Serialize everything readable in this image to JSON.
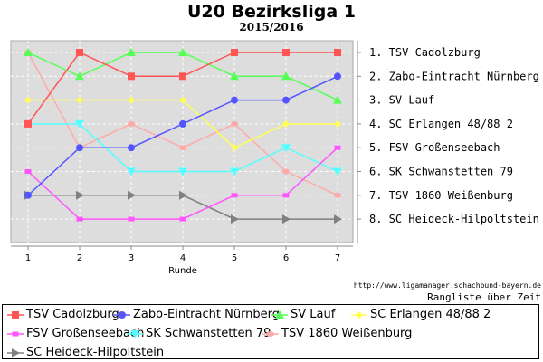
{
  "chart_data": {
    "type": "line",
    "title": "U20 Bezirksliga 1",
    "subtitle": "2015/2016",
    "xlabel": "Runde",
    "x": [
      1,
      2,
      3,
      4,
      5,
      6,
      7
    ],
    "ylim": [
      1,
      8
    ],
    "y_inverted": true,
    "grid": true,
    "legend": "bottom",
    "final_ranking": [
      "1. TSV Cadolzburg",
      "2. Zabo-Eintracht Nürnberg",
      "3. SV Lauf",
      "4. SC Erlangen 48/88 2",
      "5. FSV Großenseebach",
      "6. SK Schwanstetten 79",
      "7. TSV 1860 Weißenburg",
      "8. SC Heideck-Hilpoltstein"
    ],
    "series": [
      {
        "name": "TSV Cadolzburg",
        "color": "#ff5555",
        "marker": "square",
        "values": [
          4,
          1,
          2,
          2,
          1,
          1,
          1
        ]
      },
      {
        "name": "Zabo-Eintracht Nürnberg",
        "color": "#5555ff",
        "marker": "circle",
        "values": [
          7,
          5,
          5,
          4,
          3,
          3,
          2
        ]
      },
      {
        "name": "SV Lauf",
        "color": "#55ff55",
        "marker": "triangle-up",
        "values": [
          1,
          2,
          1,
          1,
          2,
          2,
          3
        ]
      },
      {
        "name": "SC Erlangen 48/88 2",
        "color": "#ffff55",
        "marker": "diamond",
        "values": [
          3,
          3,
          3,
          3,
          5,
          4,
          4
        ]
      },
      {
        "name": "FSV Großenseebach",
        "color": "#ff55ff",
        "marker": "small-square",
        "values": [
          6,
          8,
          8,
          8,
          7,
          7,
          5
        ]
      },
      {
        "name": "SK Schwanstetten 79",
        "color": "#55ffff",
        "marker": "triangle-down",
        "values": [
          4,
          4,
          6,
          6,
          6,
          5,
          6
        ]
      },
      {
        "name": "TSV 1860 Weißenburg",
        "color": "#ffaaaa",
        "marker": "ellipse",
        "values": [
          1,
          5,
          4,
          5,
          4,
          6,
          7
        ]
      },
      {
        "name": "SC Heideck-Hilpoltstein",
        "color": "#808080",
        "marker": "triangle-right",
        "values": [
          7,
          7,
          7,
          7,
          8,
          8,
          8
        ]
      }
    ]
  },
  "footer": {
    "url": "http://www.ligamanager.schachbund-bayern.de",
    "caption": "Rangliste über Zeit"
  }
}
